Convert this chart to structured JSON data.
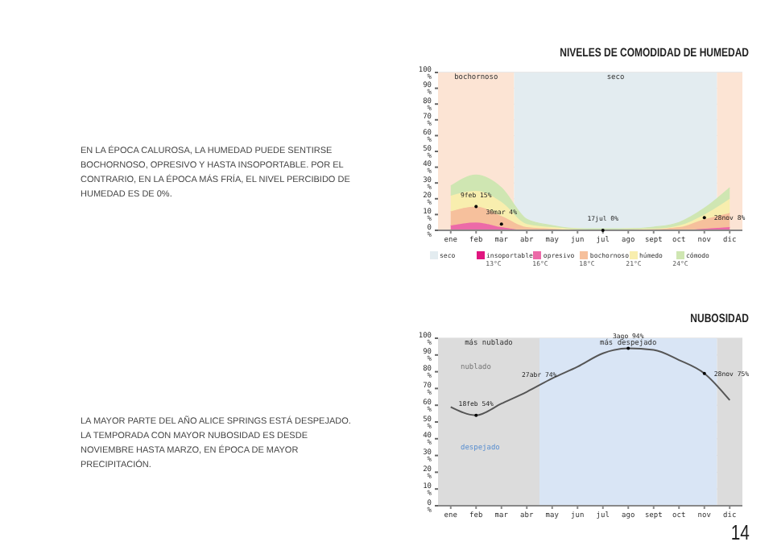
{
  "chart_data": [
    {
      "type": "area",
      "title": "NIVELES DE COMODIDAD DE HUMEDAD",
      "stacked": true,
      "categories": [
        "ene",
        "feb",
        "mar",
        "abr",
        "may",
        "jun",
        "jul",
        "ago",
        "sept",
        "oct",
        "nov",
        "dic"
      ],
      "series": [
        {
          "name": "seco",
          "color": "#e3ecf0",
          "values": [
            null,
            null,
            null,
            null,
            null,
            null,
            null,
            null,
            null,
            null,
            null,
            null
          ]
        },
        {
          "name": "insoportable",
          "color": "#e0157f",
          "values": [
            null,
            null,
            null,
            null,
            null,
            null,
            null,
            null,
            null,
            null,
            null,
            null
          ]
        },
        {
          "name": "opresivo",
          "color": "#ec6aa8",
          "values": [
            3,
            5,
            2,
            0,
            0,
            0,
            0,
            0,
            0,
            0,
            1,
            2
          ]
        },
        {
          "name": "bochornoso",
          "color": "#f6c09c",
          "values": [
            9,
            10,
            7,
            2,
            1,
            0,
            0,
            0,
            1,
            2,
            6,
            9
          ]
        },
        {
          "name": "húmedo",
          "color": "#f8eeae",
          "values": [
            10,
            10,
            9,
            2,
            1,
            1,
            0,
            1,
            0,
            1,
            3,
            9
          ]
        },
        {
          "name": "cómodo",
          "color": "#cfe6b2",
          "values": [
            6,
            10,
            9,
            3,
            1,
            0,
            1,
            0,
            1,
            2,
            4,
            7
          ]
        }
      ],
      "ylim": [
        0,
        100
      ],
      "yticks": [
        {
          "value": 0,
          "label": "0 %"
        },
        {
          "value": 10,
          "label": "10 %"
        },
        {
          "value": 20,
          "label": "20 %"
        },
        {
          "value": 30,
          "label": "30 %"
        },
        {
          "value": 40,
          "label": "40 %"
        },
        {
          "value": 50,
          "label": "50 %"
        },
        {
          "value": 60,
          "label": "60 %"
        },
        {
          "value": 70,
          "label": "70 %"
        },
        {
          "value": 80,
          "label": "80 %"
        },
        {
          "value": 90,
          "label": "90 %"
        },
        {
          "value": 100,
          "label": "100 %"
        }
      ],
      "grid": true,
      "legend": "bottom",
      "bands": [
        {
          "axis": "x",
          "from": "ene",
          "to": "mar",
          "label": "bochornoso",
          "color": "#fce4d4"
        },
        {
          "axis": "x",
          "from": "abr",
          "to": "nov",
          "label": "seco",
          "color": "#e3ecf0"
        },
        {
          "axis": "x",
          "from": "dic",
          "to": "dic",
          "label": null,
          "color": "#fce4d4"
        }
      ],
      "annotations": [
        "EN LA ÉPOCA CALUROSA, LA HUMEDAD PUEDE SENTIRSE BOCHORNOSO, OPRESIVO Y HASTA INSOPORTABLE. POR EL CONTRARIO, EN LA ÉPOCA MÁS FRÍA, EL NIVEL PERCIBIDO DE HUMEDAD ES DE 0%.",
        "13°C",
        "16°C",
        "18°C",
        "21°C",
        "24°C",
        {
          "text": "9feb 15%",
          "x": "feb",
          "y": 15
        },
        {
          "text": "30mar 4%",
          "x": "mar",
          "y": 4
        },
        {
          "text": "17jul 0%",
          "x": "jul",
          "y": 0
        },
        {
          "text": "28nov 8%",
          "x": "nov",
          "y": 8
        }
      ]
    },
    {
      "type": "line",
      "title": "NUBOSIDAD",
      "categories": [
        "ene",
        "feb",
        "mar",
        "abr",
        "may",
        "jun",
        "jul",
        "ago",
        "sept",
        "oct",
        "nov",
        "dic"
      ],
      "series": [
        {
          "color": "#555555",
          "values": [
            59,
            54,
            61,
            68,
            76,
            83,
            91,
            94,
            93,
            87,
            79,
            63
          ]
        }
      ],
      "ylim": [
        0,
        100
      ],
      "yticks": [
        {
          "value": 0,
          "label": "0 %"
        },
        {
          "value": 10,
          "label": "10 %"
        },
        {
          "value": 20,
          "label": "20 %"
        },
        {
          "value": 30,
          "label": "30 %"
        },
        {
          "value": 40,
          "label": "40 %"
        },
        {
          "value": 50,
          "label": "50 %"
        },
        {
          "value": 60,
          "label": "60 %"
        },
        {
          "value": 70,
          "label": "70 %"
        },
        {
          "value": 80,
          "label": "80 %"
        },
        {
          "value": 90,
          "label": "90 %"
        },
        {
          "value": 100,
          "label": "100 %"
        }
      ],
      "grid": true,
      "bands": [
        {
          "axis": "x",
          "from": "ene",
          "to": "abr",
          "label": "más nublado",
          "color": "#dcdcdc"
        },
        {
          "axis": "x",
          "from": "may",
          "to": "nov",
          "label": "más despejado",
          "color": "#d9e5f5"
        },
        {
          "axis": "x",
          "from": "dic",
          "to": "dic",
          "label": null,
          "color": "#dcdcdc"
        }
      ],
      "annotations": [
        "LA MAYOR PARTE DEL AÑO ALICE SPRINGS ESTÁ DESPEJADO. LA TEMPORADA CON MAYOR NUBOSIDAD ES DESDE NOVIEMBRE HASTA MARZO, EN ÉPOCA DE MAYOR PRECIPITACIÓN.",
        "nublado",
        "despejado",
        "14",
        "27abr 74%",
        {
          "text": "18feb 54%",
          "x": "feb",
          "y": 54
        },
        {
          "text": "3ago 94%",
          "x": "ago",
          "y": 94
        },
        {
          "text": "28nov 75%",
          "x": "nov",
          "y": 79
        }
      ]
    }
  ]
}
